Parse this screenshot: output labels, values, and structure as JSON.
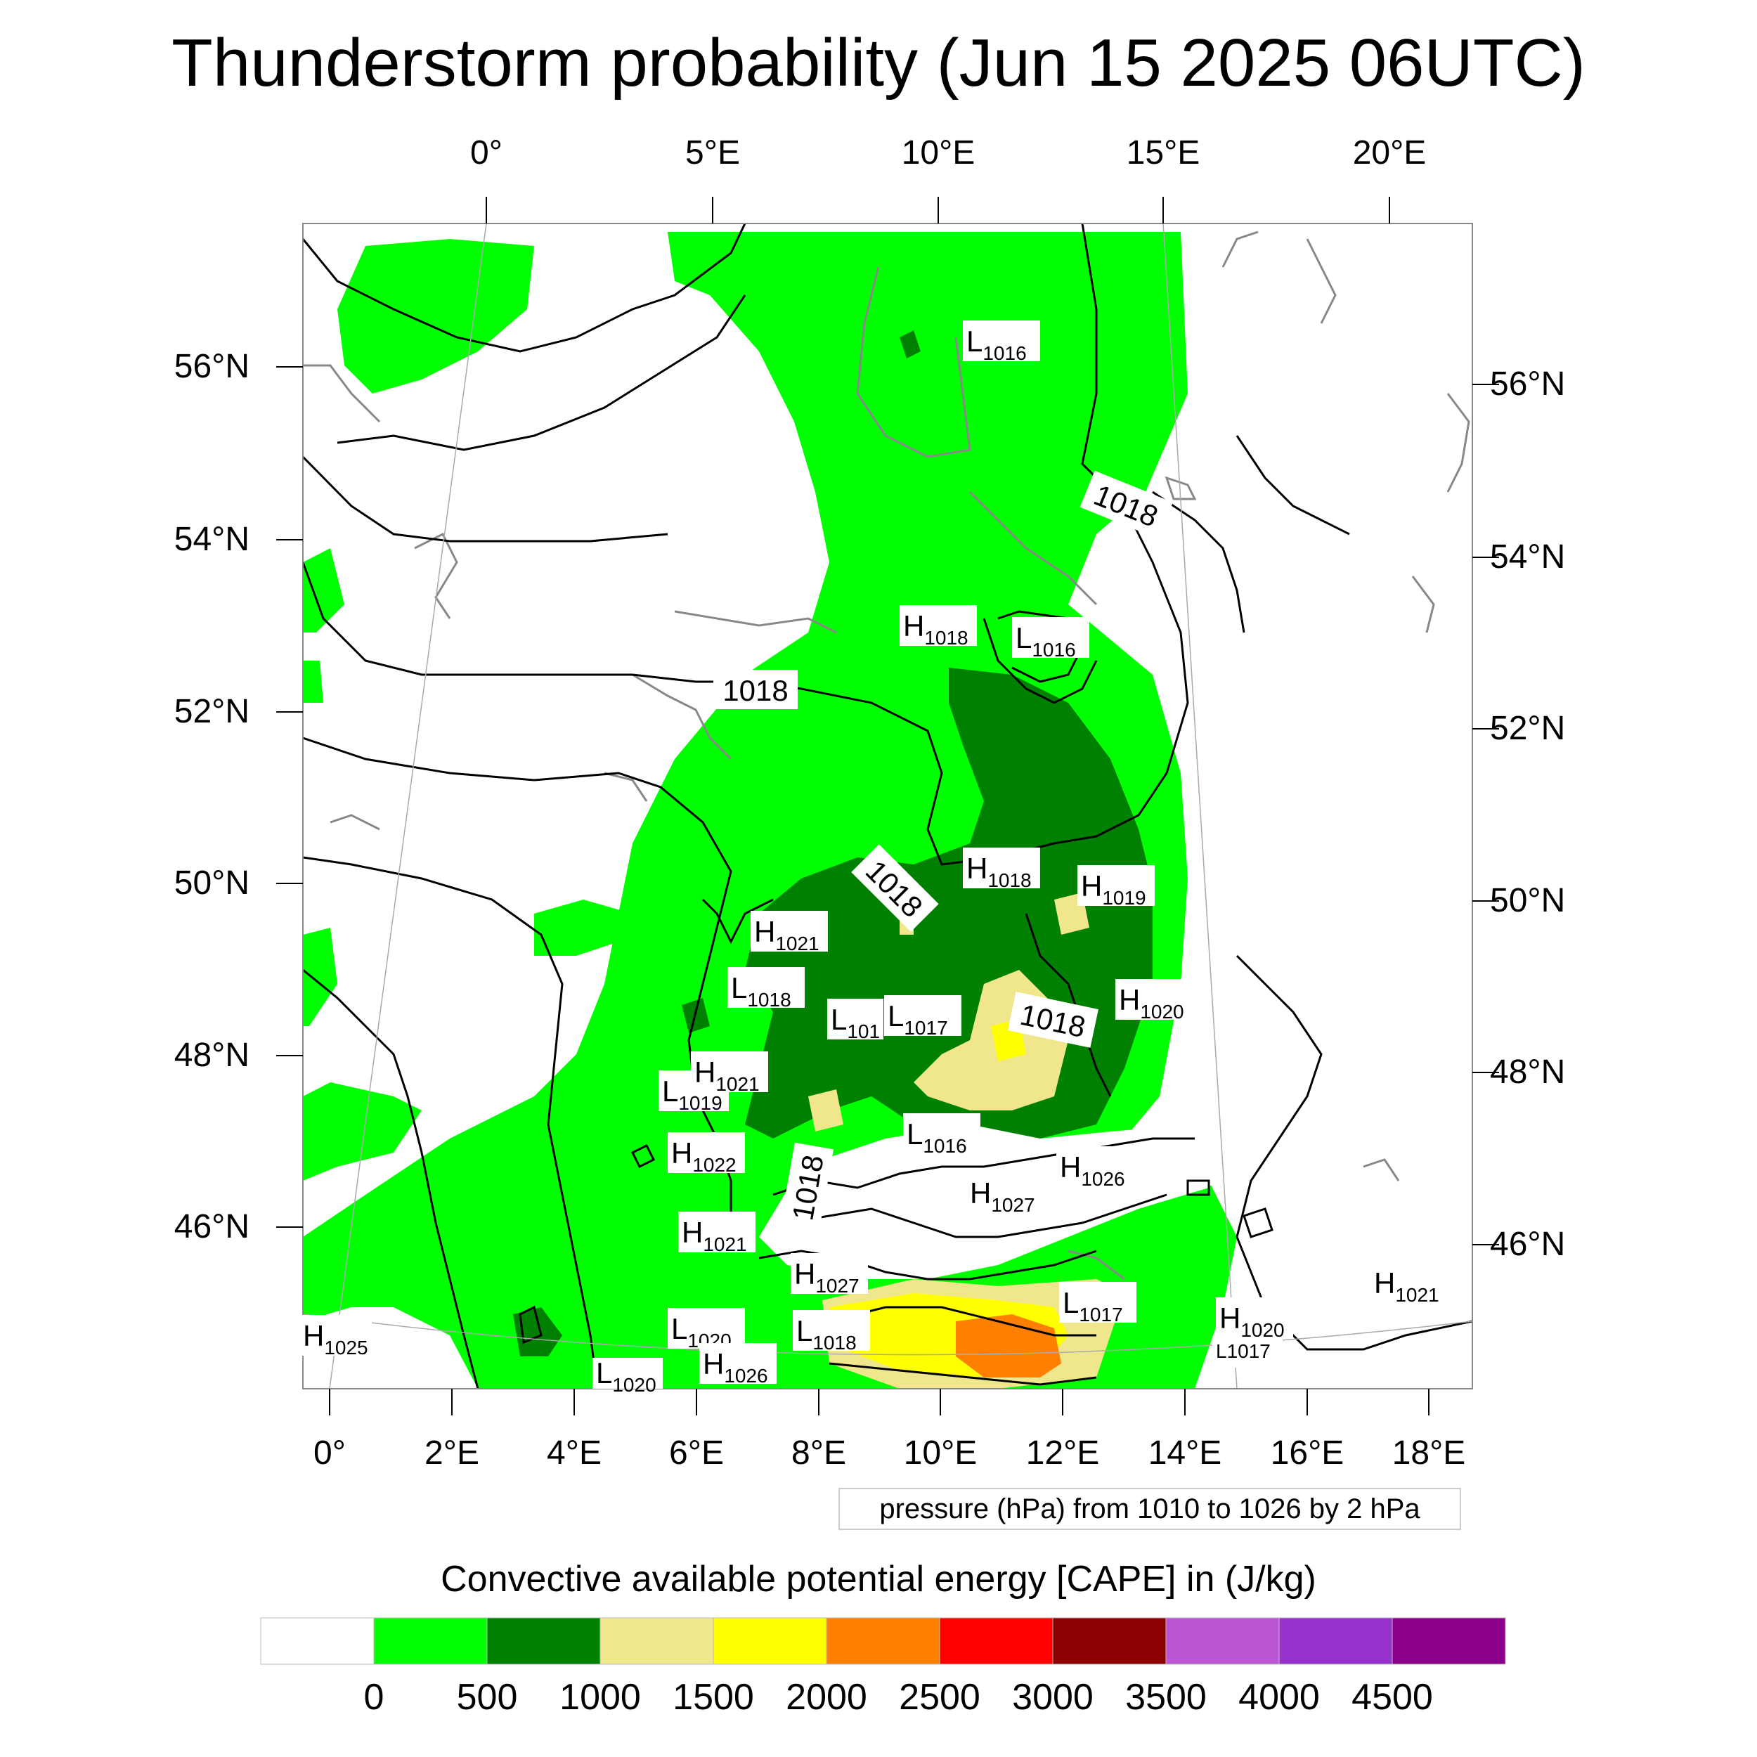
{
  "title": "Thunderstorm probability (Jun 15 2025 06UTC)",
  "axes": {
    "top_lon_labels": [
      "0°",
      "5°E",
      "10°E",
      "15°E",
      "20°E"
    ],
    "bottom_lon_labels": [
      "0°",
      "2°E",
      "4°E",
      "6°E",
      "8°E",
      "10°E",
      "12°E",
      "14°E",
      "16°E",
      "18°E"
    ],
    "left_lat_labels": [
      "56°N",
      "54°N",
      "52°N",
      "50°N",
      "48°N",
      "46°N"
    ],
    "right_lat_labels": [
      "56°N",
      "54°N",
      "52°N",
      "50°N",
      "48°N",
      "46°N"
    ]
  },
  "contour_info": "pressure (hPa) from 1010 to 1026 by 2 hPa",
  "colorbar": {
    "title": "Convective available potential energy [CAPE] in (J/kg)",
    "labels": [
      "0",
      "500",
      "1000",
      "1500",
      "2000",
      "2500",
      "3000",
      "3500",
      "4000",
      "4500"
    ],
    "colors": [
      "#ffffff",
      "#00ff00",
      "#008000",
      "#f0e68c",
      "#ffff00",
      "#ff8000",
      "#ff0000",
      "#8b0000",
      "#ba55d3",
      "#9932cc",
      "#8b008b"
    ]
  },
  "contour_labels": [
    "1018",
    "1018",
    "1018",
    "1018",
    "1018"
  ],
  "pressure_centers": [
    {
      "type": "L",
      "value": "1016"
    },
    {
      "type": "H",
      "value": "1018"
    },
    {
      "type": "L",
      "value": "1016"
    },
    {
      "type": "H",
      "value": "1018"
    },
    {
      "type": "H",
      "value": "1019"
    },
    {
      "type": "H",
      "value": "1021"
    },
    {
      "type": "L",
      "value": "1018"
    },
    {
      "type": "L",
      "value": "101"
    },
    {
      "type": "L",
      "value": "1017"
    },
    {
      "type": "H",
      "value": "1020"
    },
    {
      "type": "L",
      "value": "1019"
    },
    {
      "type": "H",
      "value": "1021"
    },
    {
      "type": "H",
      "value": "1022"
    },
    {
      "type": "L",
      "value": "1016"
    },
    {
      "type": "H",
      "value": "1026"
    },
    {
      "type": "H",
      "value": "1027"
    },
    {
      "type": "H",
      "value": "1021"
    },
    {
      "type": "H",
      "value": "1027"
    },
    {
      "type": "L",
      "value": "1020"
    },
    {
      "type": "L",
      "value": "1018"
    },
    {
      "type": "H",
      "value": "1026"
    },
    {
      "type": "L",
      "value": "1017"
    },
    {
      "type": "H",
      "value": "1021"
    },
    {
      "type": "H",
      "value": "1020"
    },
    {
      "type": "L",
      "value": "1017"
    },
    {
      "type": "H",
      "value": "1025"
    },
    {
      "type": "L",
      "value": "1020"
    }
  ]
}
